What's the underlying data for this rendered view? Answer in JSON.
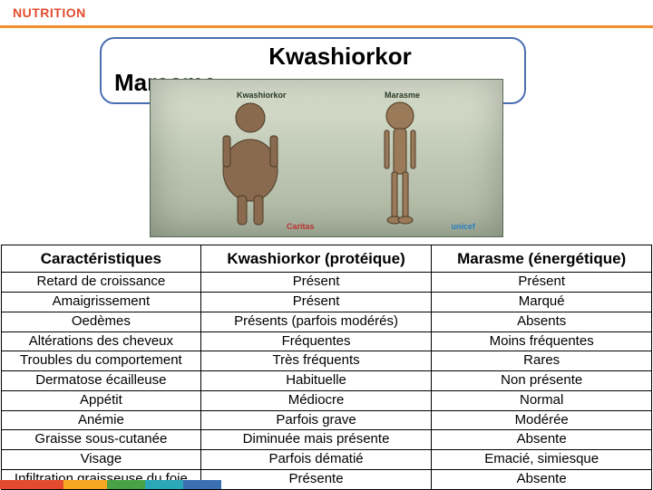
{
  "header": {
    "section_label": "NUTRITION"
  },
  "title": {
    "line1": "Kwashiorkor",
    "line2": "Marasme"
  },
  "photo": {
    "caption_left": "Kwashiorkor",
    "caption_right": "Marasme",
    "logo_left": "Caritas",
    "logo_right": "unicef"
  },
  "table": {
    "columns": [
      "Caractéristiques",
      "Kwashiorkor (protéique)",
      "Marasme (énergétique)"
    ],
    "rows": [
      [
        "Retard de croissance",
        "Présent",
        "Présent"
      ],
      [
        "Amaigrissement",
        "Présent",
        "Marqué"
      ],
      [
        "Oedèmes",
        "Présents (parfois modérés)",
        "Absents"
      ],
      [
        "Altérations des cheveux",
        "Fréquentes",
        "Moins fréquentes"
      ],
      [
        "Troubles du comportement",
        "Très fréquents",
        "Rares"
      ],
      [
        "Dermatose écailleuse",
        "Habituelle",
        "Non présente"
      ],
      [
        "Appétit",
        "Médiocre",
        "Normal"
      ],
      [
        "Anémie",
        "Parfois grave",
        "Modérée"
      ],
      [
        "Graisse sous-cutanée",
        "Diminuée mais présente",
        "Absente"
      ],
      [
        "Visage",
        "Parfois dématié",
        "Emacié, simiesque"
      ],
      [
        "Infiltration graisseuse du foie",
        "Présente",
        "Absente"
      ]
    ]
  },
  "footer_colors": [
    "#e44b2e",
    "#f7a823",
    "#4aa246",
    "#2aa7b8",
    "#3b6fb3"
  ],
  "footer_widths": [
    70,
    48,
    42,
    42,
    42
  ]
}
